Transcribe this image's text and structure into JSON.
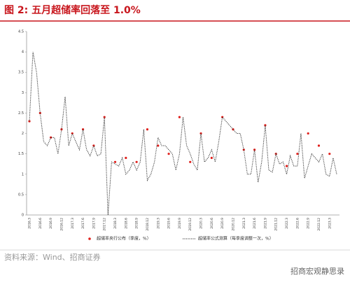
{
  "chart_data": {
    "type": "line",
    "title": "图 2:  五月超储率回落至 1.0%",
    "source": "资料来源：Wind、招商证券",
    "watermark": "招商宏观静思录",
    "categories": [
      "2016.3",
      null,
      null,
      "2016.6",
      null,
      null,
      "2016.9",
      null,
      null,
      "2016.12",
      null,
      null,
      "2017.3",
      null,
      null,
      "2017.6",
      null,
      null,
      "2017.9",
      null,
      null,
      "2017.12",
      null,
      null,
      "2018.3",
      null,
      null,
      "2018.6",
      null,
      null,
      "2018.9",
      null,
      null,
      "2018.12",
      null,
      null,
      "2019.3",
      null,
      null,
      "2019.6",
      null,
      null,
      "2019.9",
      null,
      null,
      "2019.12",
      null,
      null,
      "2020.3",
      null,
      null,
      "2020.6",
      null,
      null,
      "2020.9",
      null,
      null,
      "2020.12",
      null,
      null,
      "2021.3",
      null,
      null,
      "2021.6",
      null,
      null,
      "2021.9",
      null,
      null,
      "2021.12",
      null,
      null,
      "2022.3",
      null,
      null,
      "2022.6",
      null,
      null,
      "2022.9",
      null,
      null,
      "2022.12",
      null,
      null,
      "2023.3",
      null,
      null
    ],
    "series": [
      {
        "name": "超储率央行公布（季度，%）",
        "color": "#e0201c",
        "style": "dots",
        "values": [
          2.3,
          null,
          null,
          2.5,
          null,
          null,
          1.9,
          null,
          null,
          2.1,
          null,
          null,
          2.0,
          null,
          null,
          2.1,
          null,
          null,
          1.7,
          null,
          null,
          2.4,
          null,
          null,
          1.3,
          null,
          null,
          1.4,
          null,
          null,
          1.3,
          null,
          null,
          2.1,
          null,
          null,
          1.7,
          null,
          null,
          1.5,
          null,
          null,
          2.4,
          null,
          null,
          1.3,
          null,
          null,
          2.0,
          null,
          null,
          1.4,
          null,
          null,
          2.4,
          null,
          null,
          2.1,
          null,
          null,
          1.6,
          null,
          null,
          1.6,
          null,
          null,
          2.2,
          null,
          null,
          1.5,
          null,
          null,
          1.2,
          null,
          null,
          1.5,
          null,
          null,
          2.0,
          null,
          null,
          1.7,
          null,
          null,
          1.5,
          null,
          null
        ]
      },
      {
        "name": "超储率公式测算（每季度调整一次，%）",
        "color": "#333333",
        "style": "dotted-line",
        "values": [
          2.3,
          4.0,
          3.5,
          2.5,
          1.8,
          1.7,
          1.9,
          1.9,
          1.5,
          2.1,
          2.9,
          1.7,
          2.0,
          1.8,
          1.6,
          2.1,
          1.6,
          1.45,
          1.7,
          1.45,
          1.5,
          2.4,
          0.0,
          1.3,
          1.25,
          1.2,
          1.4,
          1.0,
          1.1,
          1.3,
          1.1,
          1.3,
          2.1,
          0.85,
          1.0,
          1.3,
          1.9,
          1.7,
          1.7,
          1.6,
          1.5,
          1.1,
          1.5,
          2.4,
          1.7,
          1.5,
          1.25,
          1.1,
          2.0,
          1.3,
          1.4,
          1.6,
          1.3,
          1.8,
          2.4,
          2.3,
          2.2,
          2.1,
          2.0,
          2.0,
          1.6,
          1.0,
          1.0,
          1.6,
          0.8,
          1.3,
          2.2,
          1.1,
          1.05,
          1.5,
          1.25,
          1.3,
          1.0,
          1.45,
          1.2,
          1.2,
          2.0,
          0.9,
          1.2,
          1.5,
          1.4,
          1.3,
          1.5,
          1.0,
          0.95,
          1.4,
          1.0
        ]
      }
    ],
    "ylim": [
      0,
      4.5
    ],
    "yticks": [
      0,
      0.5,
      1,
      1.5,
      2,
      2.5,
      3,
      3.5,
      4,
      4.5
    ]
  }
}
